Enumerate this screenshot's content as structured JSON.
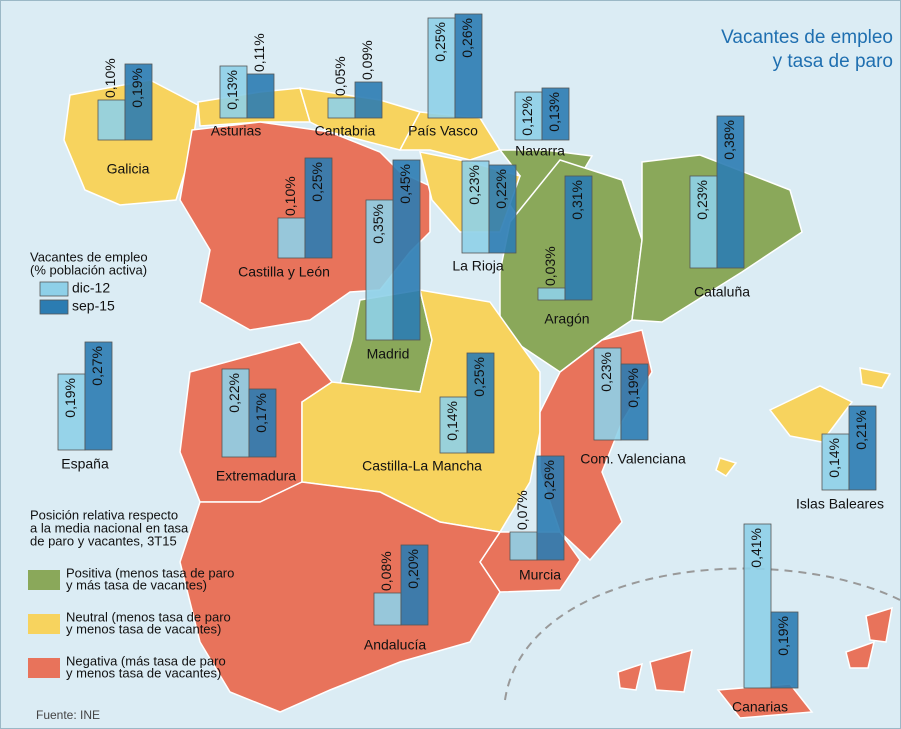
{
  "title_lines": [
    "Vacantes de empleo",
    "y tasa de paro"
  ],
  "legend_vacancies": {
    "title_lines": [
      "Vacantes de empleo",
      "(% población activa)"
    ],
    "series": [
      {
        "name": "dic-12",
        "color": "#8ed0e8"
      },
      {
        "name": "sep-15",
        "color": "#2b7cb2"
      }
    ]
  },
  "legend_position": {
    "title_lines": [
      "Posición relativa respecto",
      "a la media nacional en tasa",
      "de paro y vacantes, 3T15"
    ],
    "items": [
      {
        "lines": [
          "Positiva (menos tasa de paro",
          "y más tasa de vacantes)"
        ],
        "color": "#8aa85a"
      },
      {
        "lines": [
          "Neutral (menos tasa de paro",
          "y menos tasa de vacantes)"
        ],
        "color": "#f7d35e"
      },
      {
        "lines": [
          "Negativa (más tasa de paro",
          "y menos tasa de vacantes)"
        ],
        "color": "#e8735b"
      }
    ]
  },
  "regions": [
    {
      "name": "Galicia",
      "color": "#f7d35e",
      "values": [
        0.1,
        0.19
      ],
      "value_labels": [
        "0,10%",
        "0,19%"
      ]
    },
    {
      "name": "Asturias",
      "color": "#f7d35e",
      "values": [
        0.13,
        0.11
      ],
      "value_labels": [
        "0,13%",
        "0,11%"
      ]
    },
    {
      "name": "Cantabria",
      "color": "#f7d35e",
      "values": [
        0.05,
        0.09
      ],
      "value_labels": [
        "0,05%",
        "0,09%"
      ]
    },
    {
      "name": "País Vasco",
      "color": "#f7d35e",
      "values": [
        0.25,
        0.26
      ],
      "value_labels": [
        "0,25%",
        "0,26%"
      ]
    },
    {
      "name": "Navarra",
      "color": "#8aa85a",
      "values": [
        0.12,
        0.13
      ],
      "value_labels": [
        "0,12%",
        "0,13%"
      ]
    },
    {
      "name": "Castilla y León",
      "color": "#e8735b",
      "values": [
        0.1,
        0.25
      ],
      "value_labels": [
        "0,10%",
        "0,25%"
      ]
    },
    {
      "name": "La Rioja",
      "color": "#f7d35e",
      "values": [
        0.23,
        0.22
      ],
      "value_labels": [
        "0,23%",
        "0,22%"
      ]
    },
    {
      "name": "Madrid",
      "color": "#8aa85a",
      "values": [
        0.35,
        0.45
      ],
      "value_labels": [
        "0,35%",
        "0,45%"
      ]
    },
    {
      "name": "Aragón",
      "color": "#8aa85a",
      "values": [
        0.03,
        0.31
      ],
      "value_labels": [
        "0,03%",
        "0,31%"
      ]
    },
    {
      "name": "Cataluña",
      "color": "#8aa85a",
      "values": [
        0.23,
        0.38
      ],
      "value_labels": [
        "0,23%",
        "0,38%"
      ]
    },
    {
      "name": "España",
      "values": [
        0.19,
        0.27
      ],
      "value_labels": [
        "0,19%",
        "0,27%"
      ]
    },
    {
      "name": "Extremadura",
      "color": "#e8735b",
      "values": [
        0.22,
        0.17
      ],
      "value_labels": [
        "0,22%",
        "0,17%"
      ]
    },
    {
      "name": "Castilla-La Mancha",
      "color": "#f7d35e",
      "values": [
        0.14,
        0.25
      ],
      "value_labels": [
        "0,14%",
        "0,25%"
      ]
    },
    {
      "name": "Com. Valenciana",
      "color": "#e8735b",
      "values": [
        0.23,
        0.19
      ],
      "value_labels": [
        "0,23%",
        "0,19%"
      ]
    },
    {
      "name": "Islas Baleares",
      "color": "#f7d35e",
      "values": [
        0.14,
        0.21
      ],
      "value_labels": [
        "0,14%",
        "0,21%"
      ]
    },
    {
      "name": "Murcia",
      "color": "#e8735b",
      "values": [
        0.07,
        0.26
      ],
      "value_labels": [
        "0,07%",
        "0,26%"
      ]
    },
    {
      "name": "Andalucía",
      "color": "#e8735b",
      "values": [
        0.08,
        0.2
      ],
      "value_labels": [
        "0,08%",
        "0,20%"
      ]
    },
    {
      "name": "Canarias",
      "color": "#e8735b",
      "values": [
        0.41,
        0.19
      ],
      "value_labels": [
        "0,41%",
        "0,19%"
      ]
    }
  ],
  "source": "Fuente: INE"
}
